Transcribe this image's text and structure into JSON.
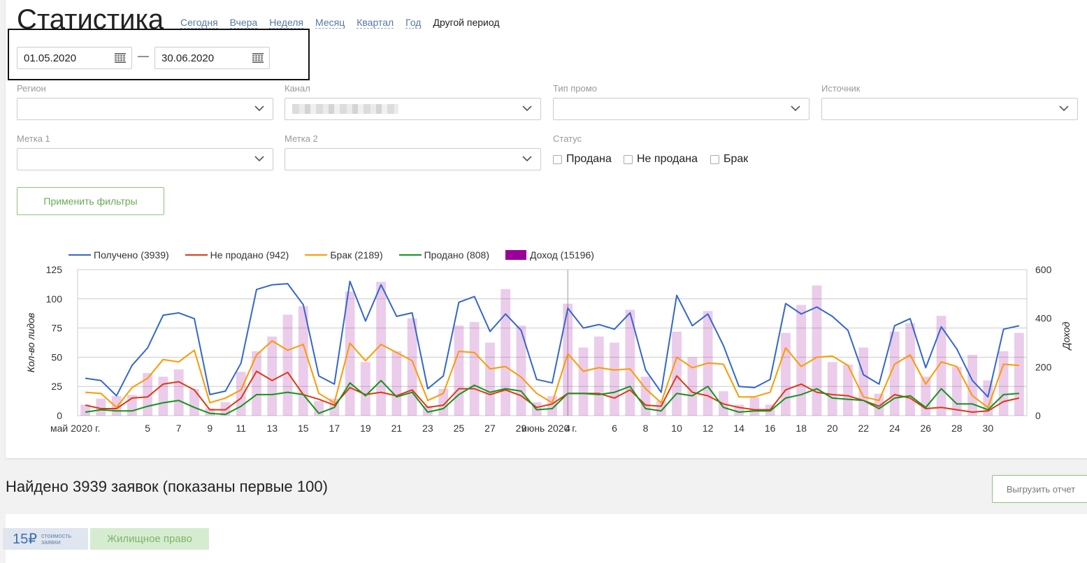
{
  "header": {
    "title": "Статистика",
    "periods": [
      "Сегодня",
      "Вчера",
      "Неделя",
      "Месяц",
      "Квартал",
      "Год"
    ],
    "period_active": "Другой период"
  },
  "date_range": {
    "from": "01.05.2020",
    "separator": "—",
    "to": "30.06.2020"
  },
  "filters": {
    "region_label": "Регион",
    "channel_label": "Канал",
    "promo_type_label": "Тип промо",
    "source_label": "Источник",
    "tag1_label": "Метка 1",
    "tag2_label": "Метка 2",
    "status_label": "Статус",
    "status_options": [
      "Продана",
      "Не продана",
      "Брак"
    ],
    "apply_label": "Применить фильтры"
  },
  "chart_data": {
    "type": "line",
    "x_tick_labels": [
      "май 2020 г.",
      "5",
      "7",
      "9",
      "11",
      "13",
      "15",
      "17",
      "19",
      "21",
      "23",
      "25",
      "27",
      "29",
      "июнь 2020 г.",
      "4",
      "6",
      "8",
      "10",
      "12",
      "14",
      "16",
      "18",
      "20",
      "22",
      "24",
      "26",
      "28",
      "30"
    ],
    "ylabel": "Кол-во лидов",
    "y2label": "Доход",
    "y_ticks": [
      0,
      25,
      50,
      75,
      100,
      125
    ],
    "y2_ticks": [
      0,
      200,
      400,
      600
    ],
    "ylim": [
      0,
      125
    ],
    "y2lim": [
      0,
      600
    ],
    "x": [
      "2020-05-01",
      "2020-05-02",
      "2020-05-03",
      "2020-05-04",
      "2020-05-05",
      "2020-05-06",
      "2020-05-07",
      "2020-05-08",
      "2020-05-09",
      "2020-05-10",
      "2020-05-11",
      "2020-05-12",
      "2020-05-13",
      "2020-05-14",
      "2020-05-15",
      "2020-05-16",
      "2020-05-17",
      "2020-05-18",
      "2020-05-19",
      "2020-05-20",
      "2020-05-21",
      "2020-05-22",
      "2020-05-23",
      "2020-05-24",
      "2020-05-25",
      "2020-05-26",
      "2020-05-27",
      "2020-05-28",
      "2020-05-29",
      "2020-05-30",
      "2020-05-31",
      "2020-06-01",
      "2020-06-02",
      "2020-06-03",
      "2020-06-04",
      "2020-06-05",
      "2020-06-06",
      "2020-06-07",
      "2020-06-08",
      "2020-06-09",
      "2020-06-10",
      "2020-06-11",
      "2020-06-12",
      "2020-06-13",
      "2020-06-14",
      "2020-06-15",
      "2020-06-16",
      "2020-06-17",
      "2020-06-18",
      "2020-06-19",
      "2020-06-20",
      "2020-06-21",
      "2020-06-22",
      "2020-06-23",
      "2020-06-24",
      "2020-06-25",
      "2020-06-26",
      "2020-06-27",
      "2020-06-28",
      "2020-06-29",
      "2020-06-30"
    ],
    "series": [
      {
        "name": "Получено (3939)",
        "color": "#3366cc",
        "axis": "left",
        "values": [
          32,
          30,
          17,
          43,
          58,
          86,
          88,
          83,
          18,
          21,
          45,
          108,
          112,
          113,
          95,
          34,
          27,
          115,
          81,
          112,
          85,
          88,
          23,
          34,
          97,
          102,
          72,
          87,
          73,
          31,
          28,
          92,
          75,
          78,
          74,
          88,
          39,
          20,
          103,
          77,
          87,
          60,
          25,
          24,
          31,
          96,
          87,
          93,
          85,
          73,
          35,
          27,
          77,
          83,
          41,
          76,
          57,
          30,
          16,
          74,
          77
        ]
      },
      {
        "name": "Не продано (942)",
        "color": "#dc3912",
        "axis": "left",
        "values": [
          9,
          6,
          6,
          15,
          16,
          27,
          29,
          22,
          5,
          5,
          15,
          38,
          30,
          37,
          18,
          14,
          9,
          24,
          18,
          20,
          17,
          22,
          7,
          9,
          23,
          23,
          18,
          22,
          17,
          7,
          10,
          19,
          19,
          19,
          15,
          22,
          9,
          8,
          34,
          20,
          17,
          10,
          7,
          5,
          5,
          22,
          27,
          20,
          18,
          17,
          13,
          8,
          18,
          15,
          6,
          7,
          5,
          3,
          4,
          12,
          15
        ]
      },
      {
        "name": "Брак (2189)",
        "color": "#ff9900",
        "axis": "left",
        "values": [
          20,
          19,
          7,
          24,
          32,
          48,
          46,
          56,
          11,
          15,
          22,
          52,
          64,
          56,
          61,
          19,
          11,
          62,
          47,
          61,
          54,
          47,
          13,
          19,
          55,
          54,
          40,
          42,
          33,
          19,
          11,
          53,
          38,
          41,
          39,
          40,
          23,
          11,
          50,
          41,
          45,
          44,
          16,
          16,
          20,
          58,
          42,
          50,
          51,
          43,
          16,
          13,
          44,
          52,
          27,
          46,
          42,
          17,
          7,
          44,
          43
        ]
      },
      {
        "name": "Продано (808)",
        "color": "#109618",
        "axis": "left",
        "values": [
          3,
          5,
          4,
          4,
          8,
          11,
          13,
          7,
          2,
          1,
          8,
          18,
          18,
          20,
          18,
          2,
          7,
          28,
          17,
          30,
          16,
          20,
          3,
          6,
          18,
          26,
          20,
          23,
          21,
          5,
          6,
          19,
          19,
          18,
          20,
          25,
          6,
          4,
          19,
          17,
          25,
          7,
          3,
          4,
          4,
          15,
          18,
          23,
          15,
          14,
          13,
          6,
          15,
          17,
          7,
          23,
          10,
          10,
          5,
          18,
          19
        ]
      },
      {
        "name": "Доход (15196)",
        "color": "#990099",
        "axis": "right",
        "kind": "bar",
        "values": [
          45,
          70,
          80,
          85,
          175,
          160,
          190,
          110,
          30,
          55,
          180,
          265,
          325,
          415,
          450,
          60,
          70,
          510,
          220,
          550,
          265,
          400,
          40,
          110,
          370,
          385,
          300,
          520,
          370,
          55,
          80,
          460,
          280,
          325,
          300,
          435,
          160,
          60,
          345,
          240,
          430,
          100,
          45,
          75,
          45,
          340,
          455,
          535,
          220,
          210,
          280,
          90,
          345,
          380,
          160,
          410,
          200,
          250,
          145,
          265,
          340
        ]
      }
    ]
  },
  "results": {
    "found_text": "Найдено 3939 заявок (показаны первые 100)",
    "export_label": "Выгрузить отчет"
  },
  "lead_row": {
    "price": "15₽",
    "price_caption_1": "стоимость",
    "price_caption_2": "заявки",
    "category": "Жилищное право"
  }
}
